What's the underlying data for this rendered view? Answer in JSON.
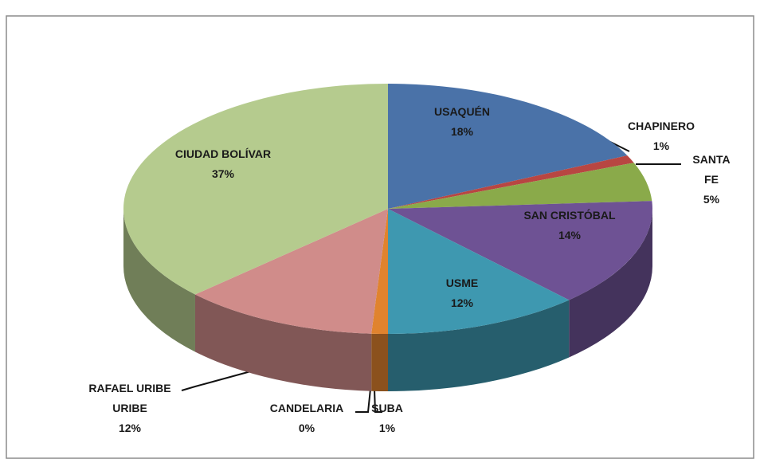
{
  "chart_data": {
    "type": "pie",
    "categories": [
      "USAQUÉN",
      "CHAPINERO",
      "SANTA FE",
      "SAN CRISTÓBAL",
      "USME",
      "SUBA",
      "CANDELARIA",
      "RAFAEL URIBE URIBE",
      "CIUDAD BOLÍVAR"
    ],
    "values": [
      18,
      1,
      5,
      14,
      12,
      1,
      0,
      12,
      37
    ],
    "value_labels": [
      "18%",
      "1%",
      "5%",
      "14%",
      "12%",
      "1%",
      "0%",
      "12%",
      "37%"
    ],
    "colors": [
      "#4a72a8",
      "#b84642",
      "#8aaa4a",
      "#6e5294",
      "#3e98b0",
      "#e0832e",
      "#a8a8a8",
      "#d08c8a",
      "#b5cb8e"
    ]
  }
}
